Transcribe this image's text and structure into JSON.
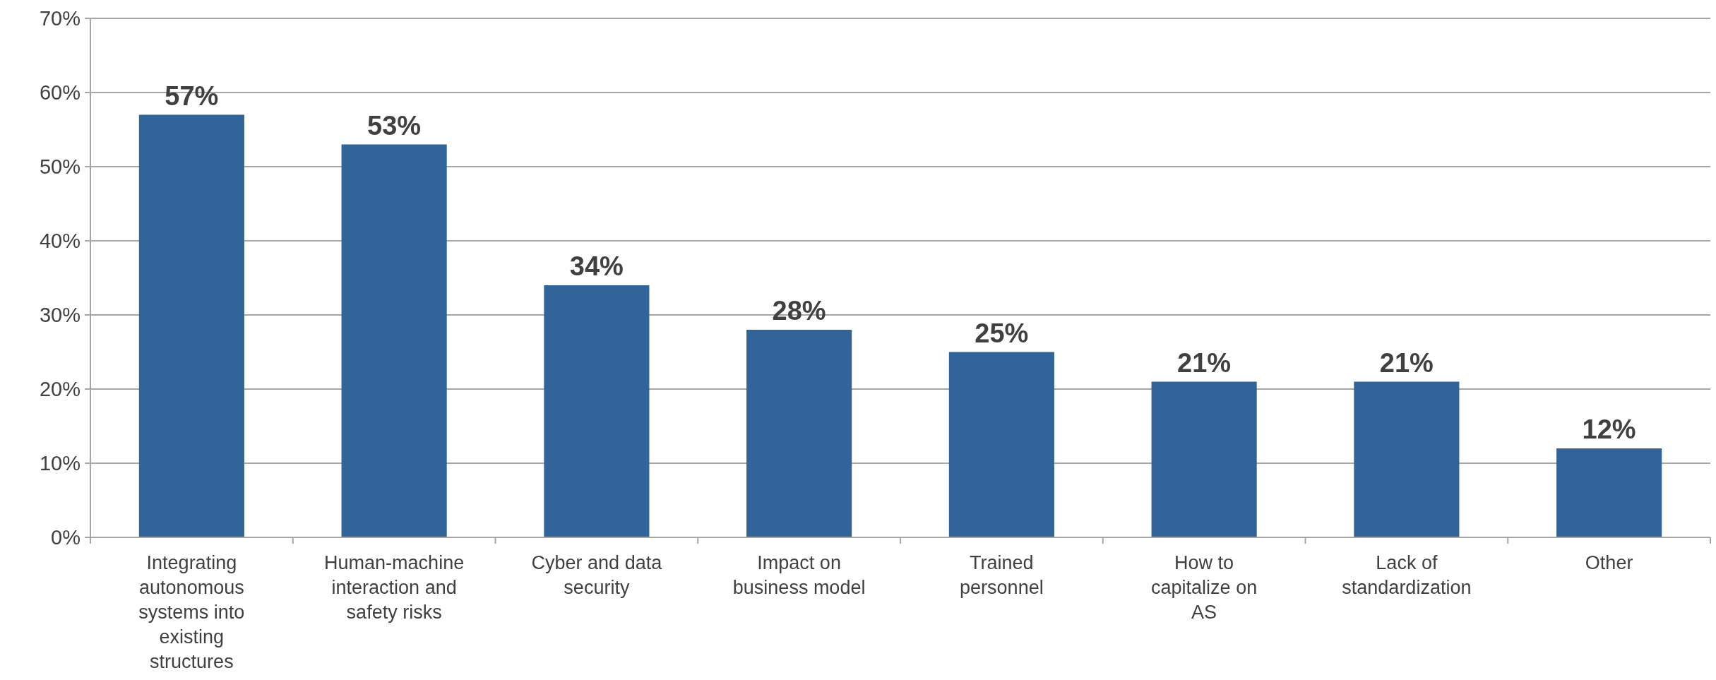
{
  "chart_data": {
    "type": "bar",
    "categories": [
      "Integrating autonomous systems into existing structures",
      "Human-machine interaction and safety risks",
      "Cyber and data security",
      "Impact on business model",
      "Trained personnel",
      "How to capitalize on AS",
      "Lack of standardization",
      "Other"
    ],
    "values": [
      57,
      53,
      34,
      28,
      25,
      21,
      21,
      12
    ],
    "value_labels": [
      "57%",
      "53%",
      "34%",
      "28%",
      "25%",
      "21%",
      "21%",
      "12%"
    ],
    "color": "#31659a",
    "ylim": [
      0,
      70
    ],
    "yticks": [
      {
        "value": 0,
        "label": "0%"
      },
      {
        "value": 10,
        "label": "10%"
      },
      {
        "value": 20,
        "label": "20%"
      },
      {
        "value": 30,
        "label": "30%"
      },
      {
        "value": 40,
        "label": "40%"
      },
      {
        "value": 50,
        "label": "50%"
      },
      {
        "value": 60,
        "label": "60%"
      },
      {
        "value": 70,
        "label": "70%"
      }
    ],
    "grid": "y"
  }
}
